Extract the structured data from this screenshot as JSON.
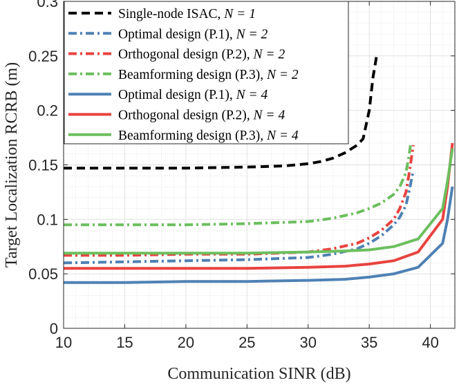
{
  "chart_data": {
    "type": "line",
    "title": "",
    "xlabel": "Communication SINR (dB)",
    "ylabel": "Target Localization RCRB (m)",
    "xlim": [
      10,
      42
    ],
    "ylim": [
      0,
      0.3
    ],
    "xticks": [
      10,
      15,
      20,
      25,
      30,
      35,
      40
    ],
    "xtick_labels": [
      "10",
      "15",
      "20",
      "25",
      "30",
      "35",
      "40"
    ],
    "yticks": [
      0,
      0.05,
      0.1,
      0.15,
      0.2,
      0.25,
      0.3
    ],
    "ytick_labels": [
      "0",
      "0.05",
      "0.1",
      "0.15",
      "0.2",
      "0.25",
      "0.3"
    ],
    "grid": true,
    "minor_grid": true,
    "legend_position": "top-left",
    "series": [
      {
        "name": "Single-node ISAC, N = 1",
        "legend_prefix": "Single-node ISAC, ",
        "legend_n": "N = 1",
        "color": "#000000",
        "style": "dashed",
        "x": [
          10,
          15,
          20,
          25,
          28,
          30,
          31,
          32,
          33,
          34,
          34.5,
          35,
          35.3,
          35.6
        ],
        "y": [
          0.147,
          0.147,
          0.147,
          0.148,
          0.149,
          0.151,
          0.153,
          0.156,
          0.161,
          0.168,
          0.174,
          0.2,
          0.23,
          0.25
        ]
      },
      {
        "name": "Optimal design (P.1), N = 2",
        "legend_prefix": "Optimal design (P.1), ",
        "legend_n": "N = 2",
        "color": "#4f81b4",
        "style": "dashdot",
        "x": [
          10,
          15,
          20,
          25,
          30,
          32,
          34,
          35,
          36,
          37,
          37.5,
          38,
          38.3,
          38.6
        ],
        "y": [
          0.06,
          0.061,
          0.062,
          0.063,
          0.065,
          0.068,
          0.073,
          0.078,
          0.085,
          0.095,
          0.102,
          0.113,
          0.128,
          0.145
        ]
      },
      {
        "name": "Orthogonal design (P.2), N = 2",
        "legend_prefix": "Orthogonal design (P.2), ",
        "legend_n": "N = 2",
        "color": "#e8433f",
        "style": "dashdot",
        "x": [
          10,
          15,
          20,
          25,
          30,
          32,
          34,
          35,
          36,
          37,
          37.5,
          38,
          38.3,
          38.6
        ],
        "y": [
          0.067,
          0.067,
          0.068,
          0.068,
          0.07,
          0.073,
          0.078,
          0.083,
          0.09,
          0.1,
          0.11,
          0.125,
          0.145,
          0.168
        ]
      },
      {
        "name": "Beamforming design (P.3), N = 2",
        "legend_prefix": "Beamforming design (P.3), ",
        "legend_n": "N = 2",
        "color": "#6cbf5e",
        "style": "dashdot",
        "x": [
          10,
          15,
          20,
          25,
          30,
          32,
          34,
          35,
          36,
          37,
          37.5,
          38,
          38.2,
          38.4
        ],
        "y": [
          0.095,
          0.095,
          0.095,
          0.096,
          0.098,
          0.101,
          0.106,
          0.11,
          0.115,
          0.123,
          0.13,
          0.143,
          0.155,
          0.17
        ]
      },
      {
        "name": "Optimal design (P.1), N = 4",
        "legend_prefix": "Optimal design (P.1), ",
        "legend_n": "N = 4",
        "color": "#4f81b4",
        "style": "solid",
        "x": [
          10,
          15,
          20,
          25,
          30,
          33,
          35,
          37,
          39,
          41,
          41.4,
          41.8
        ],
        "y": [
          0.042,
          0.042,
          0.043,
          0.043,
          0.044,
          0.045,
          0.047,
          0.05,
          0.056,
          0.078,
          0.1,
          0.13
        ]
      },
      {
        "name": "Orthogonal design (P.2), N = 4",
        "legend_prefix": "Orthogonal design (P.2), ",
        "legend_n": "N = 4",
        "color": "#e8433f",
        "style": "solid",
        "x": [
          10,
          15,
          20,
          25,
          30,
          33,
          35,
          37,
          39,
          41,
          41.4,
          41.8
        ],
        "y": [
          0.055,
          0.055,
          0.055,
          0.055,
          0.056,
          0.057,
          0.059,
          0.062,
          0.07,
          0.1,
          0.13,
          0.17
        ]
      },
      {
        "name": "Beamforming design (P.3), N = 4",
        "legend_prefix": "Beamforming design (P.3), ",
        "legend_n": "N = 4",
        "color": "#6cbf5e",
        "style": "solid",
        "x": [
          10,
          15,
          20,
          25,
          30,
          33,
          35,
          37,
          39,
          41,
          41.4,
          41.8
        ],
        "y": [
          0.069,
          0.069,
          0.069,
          0.069,
          0.07,
          0.071,
          0.072,
          0.075,
          0.082,
          0.11,
          0.135,
          0.165
        ]
      }
    ]
  }
}
